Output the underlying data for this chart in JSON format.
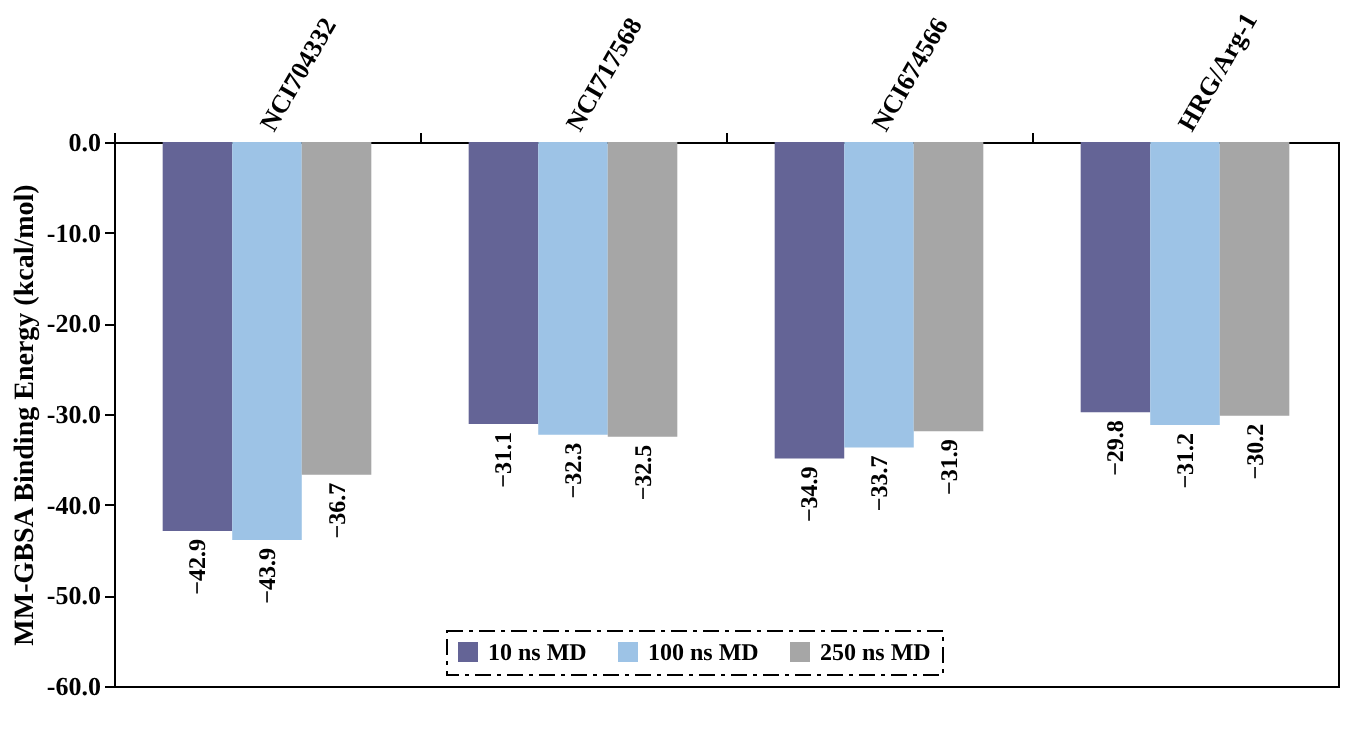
{
  "chart_data": {
    "type": "bar",
    "ylabel": "MM-GBSA Binding Energy (kcal/mol)",
    "categories": [
      "NCI704332",
      "NCI717568",
      "NCI674566",
      "HRG/Arg-1"
    ],
    "series": [
      {
        "name": "10 ns MD",
        "color": "#646496",
        "values": [
          -42.9,
          -31.1,
          -34.9,
          -29.8
        ]
      },
      {
        "name": "100 ns MD",
        "color": "#9dc3e6",
        "values": [
          -43.9,
          -32.3,
          -33.7,
          -31.2
        ]
      },
      {
        "name": "250 ns MD",
        "color": "#a6a6a6",
        "values": [
          -36.7,
          -32.5,
          -31.9,
          -30.2
        ]
      }
    ],
    "ylim": [
      -60,
      0
    ],
    "yticks": [
      {
        "value": 0,
        "label": "0.0"
      },
      {
        "value": -10,
        "label": "-10.0"
      },
      {
        "value": -20,
        "label": "-20.0"
      },
      {
        "value": -30,
        "label": "-30.0"
      },
      {
        "value": -40,
        "label": "-40.0"
      },
      {
        "value": -50,
        "label": "-50.0"
      },
      {
        "value": -60,
        "label": "-60.0"
      }
    ],
    "data_labels": true,
    "legend": "bottom",
    "grid": false
  }
}
